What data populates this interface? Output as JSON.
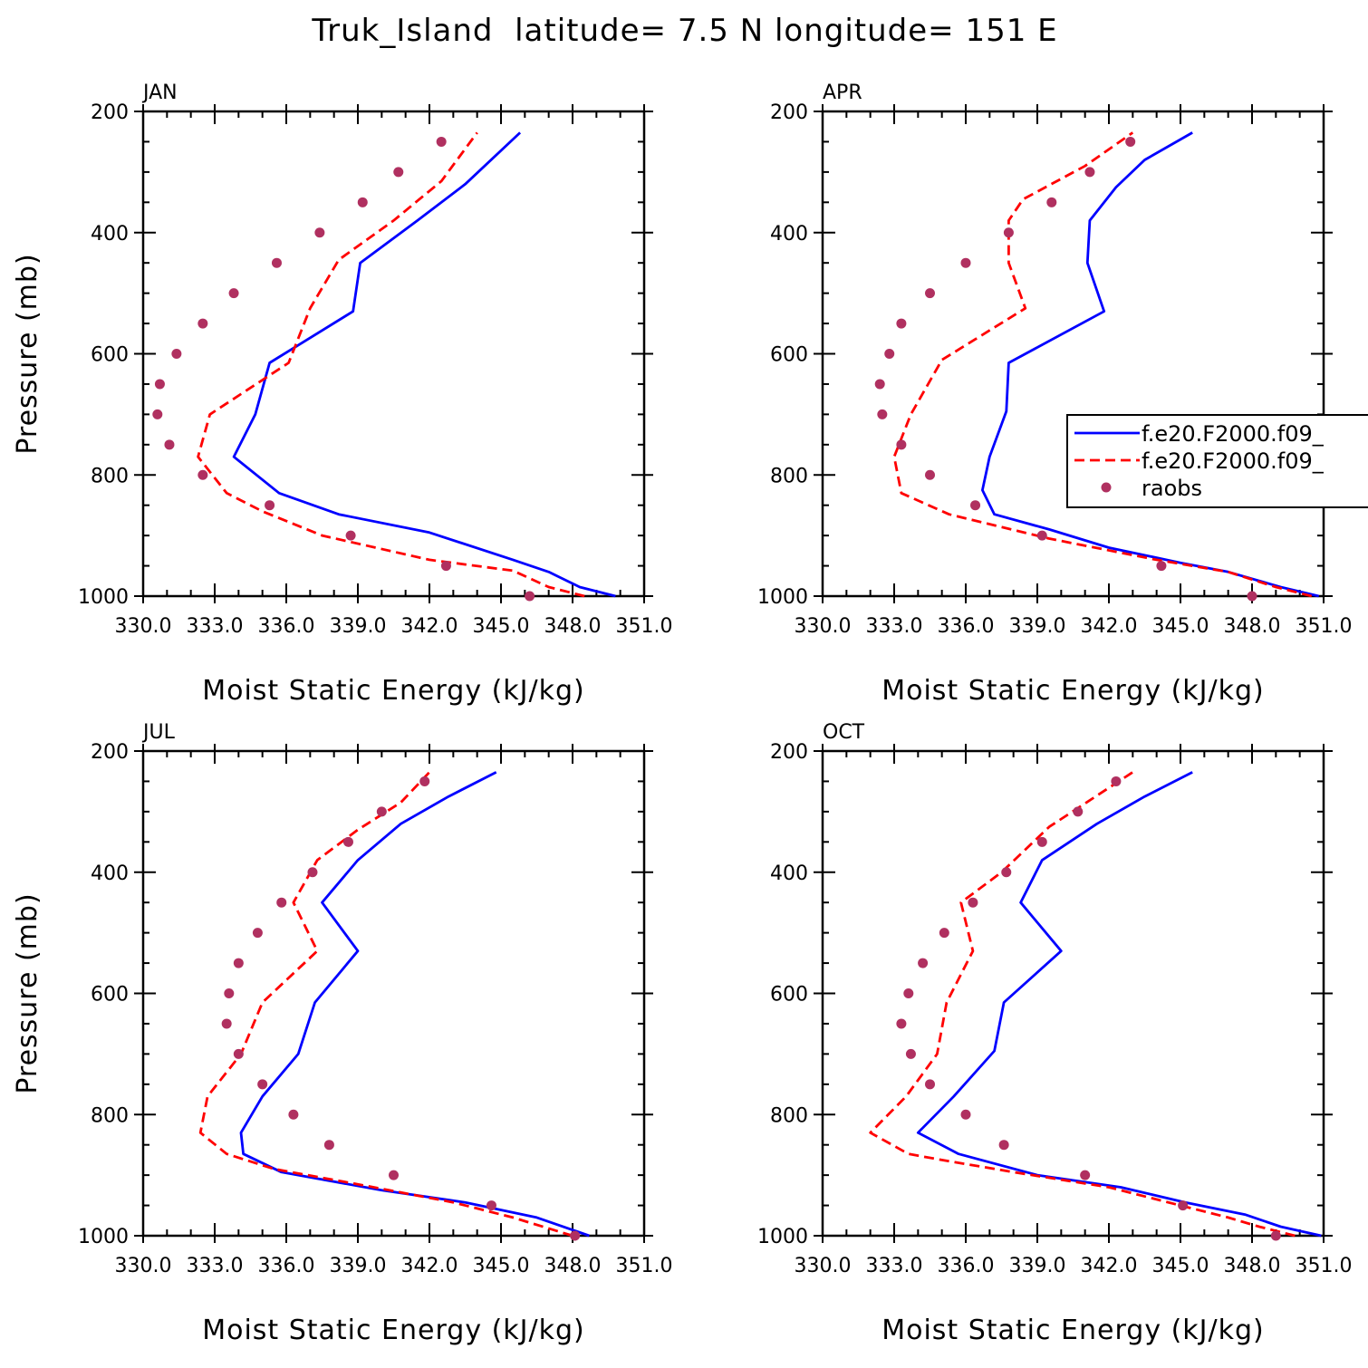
{
  "figure": {
    "title": "Truk_Island  latitude= 7.5 N longitude= 151 E"
  },
  "legend": {
    "panel": "APR",
    "entries": [
      {
        "label": "f.e20.F2000.f09_",
        "style": "solid",
        "color": "#0000ff"
      },
      {
        "label": "f.e20.F2000.f09_",
        "style": "dashed",
        "color": "#ff0000"
      },
      {
        "label": "raobs",
        "style": "marker",
        "color": "#b03060"
      }
    ]
  },
  "chart_data": [
    {
      "type": "line",
      "title": "JAN",
      "xlabel": "Moist Static Energy (kJ/kg)",
      "ylabel": "Pressure (mb)",
      "xlim": [
        330,
        351
      ],
      "ylim": [
        1000,
        200
      ],
      "xticks": [
        330,
        333,
        336,
        339,
        342,
        345,
        348,
        351
      ],
      "xtick_labels": [
        "330.0",
        "333.0",
        "336.0",
        "339.0",
        "342.0",
        "345.0",
        "348.0",
        "351.0"
      ],
      "yticks": [
        200,
        400,
        600,
        800,
        1000
      ],
      "ytick_labels": [
        "200",
        "400",
        "600",
        "800",
        "1000"
      ],
      "series": [
        {
          "name": "f.e20.F2000.f09_",
          "style": "solid",
          "color": "#0000ff",
          "x": [
            349.8,
            348.3,
            347.0,
            345.5,
            342.0,
            338.2,
            335.7,
            333.8,
            334.7,
            335.3,
            338.8,
            339.1,
            341.5,
            343.5,
            345.8
          ],
          "y": [
            1000,
            985,
            960,
            940,
            895,
            865,
            830,
            770,
            700,
            615,
            530,
            450,
            380,
            320,
            235
          ]
        },
        {
          "name": "f.e20.F2000.f09_",
          "style": "dashed",
          "color": "#ff0000",
          "x": [
            348.5,
            347.0,
            345.5,
            342.0,
            337.5,
            335.0,
            333.5,
            332.3,
            332.8,
            336.1,
            337.0,
            338.2,
            340.5,
            342.5,
            344.0
          ],
          "y": [
            1000,
            985,
            958,
            940,
            900,
            860,
            830,
            770,
            700,
            615,
            525,
            445,
            380,
            315,
            235
          ]
        },
        {
          "name": "raobs",
          "style": "marker",
          "color": "#b03060",
          "x": [
            346.2,
            342.7,
            338.7,
            335.3,
            332.5,
            331.1,
            330.6,
            330.7,
            331.4,
            332.5,
            333.8,
            335.6,
            337.4,
            339.2,
            340.7,
            342.5
          ],
          "y": [
            1000,
            950,
            900,
            850,
            800,
            750,
            700,
            650,
            600,
            550,
            500,
            450,
            400,
            350,
            300,
            250
          ]
        }
      ]
    },
    {
      "type": "line",
      "title": "APR",
      "xlabel": "Moist Static Energy (kJ/kg)",
      "ylabel": "",
      "xlim": [
        330,
        351
      ],
      "ylim": [
        1000,
        200
      ],
      "xticks": [
        330,
        333,
        336,
        339,
        342,
        345,
        348,
        351
      ],
      "xtick_labels": [
        "330.0",
        "333.0",
        "336.0",
        "339.0",
        "342.0",
        "345.0",
        "348.0",
        "351.0"
      ],
      "yticks": [
        200,
        400,
        600,
        800,
        1000
      ],
      "ytick_labels": [
        "200",
        "400",
        "600",
        "800",
        "1000"
      ],
      "series": [
        {
          "name": "f.e20.F2000.f09_",
          "style": "solid",
          "color": "#0000ff",
          "x": [
            350.8,
            349.2,
            347.0,
            345.0,
            342.0,
            339.5,
            337.2,
            336.7,
            337.0,
            337.7,
            337.8,
            341.8,
            341.1,
            341.2,
            342.3,
            343.5,
            345.5
          ],
          "y": [
            1000,
            985,
            960,
            945,
            920,
            890,
            865,
            825,
            770,
            695,
            615,
            530,
            450,
            380,
            325,
            280,
            235
          ]
        },
        {
          "name": "f.e20.F2000.f09_",
          "style": "dashed",
          "color": "#ff0000",
          "x": [
            350.5,
            349.0,
            347.0,
            344.0,
            339.5,
            335.3,
            333.3,
            333.0,
            333.7,
            335.0,
            338.5,
            337.8,
            337.8,
            338.4,
            341.0,
            343.0
          ],
          "y": [
            1000,
            985,
            960,
            940,
            905,
            865,
            830,
            770,
            700,
            610,
            525,
            450,
            380,
            345,
            290,
            235
          ]
        },
        {
          "name": "raobs",
          "style": "marker",
          "color": "#b03060",
          "x": [
            348.0,
            344.2,
            339.2,
            336.4,
            334.5,
            333.3,
            332.5,
            332.4,
            332.8,
            333.3,
            334.5,
            336.0,
            337.8,
            339.6,
            341.2,
            342.9
          ],
          "y": [
            1000,
            950,
            900,
            850,
            800,
            750,
            700,
            650,
            600,
            550,
            500,
            450,
            400,
            350,
            300,
            250
          ]
        }
      ]
    },
    {
      "type": "line",
      "title": "JUL",
      "xlabel": "Moist Static Energy (kJ/kg)",
      "ylabel": "Pressure (mb)",
      "xlim": [
        330,
        351
      ],
      "ylim": [
        1000,
        200
      ],
      "xticks": [
        330,
        333,
        336,
        339,
        342,
        345,
        348,
        351
      ],
      "xtick_labels": [
        "330.0",
        "333.0",
        "336.0",
        "339.0",
        "342.0",
        "345.0",
        "348.0",
        "351.0"
      ],
      "yticks": [
        200,
        400,
        600,
        800,
        1000
      ],
      "ytick_labels": [
        "200",
        "400",
        "600",
        "800",
        "1000"
      ],
      "series": [
        {
          "name": "f.e20.F2000.f09_",
          "style": "solid",
          "color": "#0000ff",
          "x": [
            348.7,
            346.5,
            343.5,
            340.0,
            335.8,
            334.2,
            334.1,
            335.0,
            336.5,
            337.2,
            339.0,
            337.5,
            339.0,
            340.8,
            342.8,
            344.8
          ],
          "y": [
            1000,
            970,
            945,
            925,
            895,
            865,
            830,
            770,
            700,
            615,
            530,
            450,
            380,
            320,
            275,
            235
          ]
        },
        {
          "name": "f.e20.F2000.f09_",
          "style": "dashed",
          "color": "#ff0000",
          "x": [
            348.0,
            345.5,
            343.0,
            339.0,
            335.5,
            333.5,
            332.4,
            332.7,
            334.1,
            335.0,
            337.3,
            336.3,
            337.3,
            339.0,
            340.8,
            342.0
          ],
          "y": [
            1000,
            970,
            945,
            915,
            890,
            865,
            830,
            770,
            700,
            615,
            530,
            450,
            380,
            330,
            285,
            235
          ]
        },
        {
          "name": "raobs",
          "style": "marker",
          "color": "#b03060",
          "x": [
            348.1,
            344.6,
            340.5,
            337.8,
            336.3,
            335.0,
            334.0,
            333.5,
            333.6,
            334.0,
            334.8,
            335.8,
            337.1,
            338.6,
            340.0,
            341.8
          ],
          "y": [
            1000,
            950,
            900,
            850,
            800,
            750,
            700,
            650,
            600,
            550,
            500,
            450,
            400,
            350,
            300,
            250
          ]
        }
      ]
    },
    {
      "type": "line",
      "title": "OCT",
      "xlabel": "Moist Static Energy (kJ/kg)",
      "ylabel": "",
      "xlim": [
        330,
        351
      ],
      "ylim": [
        1000,
        200
      ],
      "xticks": [
        330,
        333,
        336,
        339,
        342,
        345,
        348,
        351
      ],
      "xtick_labels": [
        "330.0",
        "333.0",
        "336.0",
        "339.0",
        "342.0",
        "345.0",
        "348.0",
        "351.0"
      ],
      "yticks": [
        200,
        400,
        600,
        800,
        1000
      ],
      "ytick_labels": [
        "200",
        "400",
        "600",
        "800",
        "1000"
      ],
      "series": [
        {
          "name": "f.e20.F2000.f09_",
          "style": "solid",
          "color": "#0000ff",
          "x": [
            350.9,
            349.2,
            347.7,
            345.2,
            342.5,
            339.0,
            335.7,
            334.0,
            335.5,
            337.2,
            337.6,
            340.0,
            338.3,
            339.2,
            341.5,
            343.5,
            345.5
          ],
          "y": [
            1000,
            985,
            965,
            945,
            920,
            900,
            865,
            830,
            770,
            695,
            615,
            530,
            450,
            380,
            320,
            275,
            235
          ]
        },
        {
          "name": "f.e20.F2000.f09_",
          "style": "dashed",
          "color": "#ff0000",
          "x": [
            349.8,
            348.3,
            347.0,
            345.0,
            342.0,
            338.0,
            335.0,
            333.6,
            332.0,
            333.5,
            334.8,
            335.2,
            336.3,
            335.8,
            337.5,
            339.5,
            343.0
          ],
          "y": [
            1000,
            985,
            970,
            950,
            920,
            895,
            875,
            865,
            830,
            770,
            700,
            615,
            530,
            450,
            400,
            325,
            235
          ]
        },
        {
          "name": "raobs",
          "style": "marker",
          "color": "#b03060",
          "x": [
            349.0,
            345.1,
            341.0,
            337.6,
            336.0,
            334.5,
            333.7,
            333.3,
            333.6,
            334.2,
            335.1,
            336.3,
            337.7,
            339.2,
            340.7,
            342.3
          ],
          "y": [
            1000,
            950,
            900,
            850,
            800,
            750,
            700,
            650,
            600,
            550,
            500,
            450,
            400,
            350,
            300,
            250
          ]
        }
      ]
    }
  ]
}
